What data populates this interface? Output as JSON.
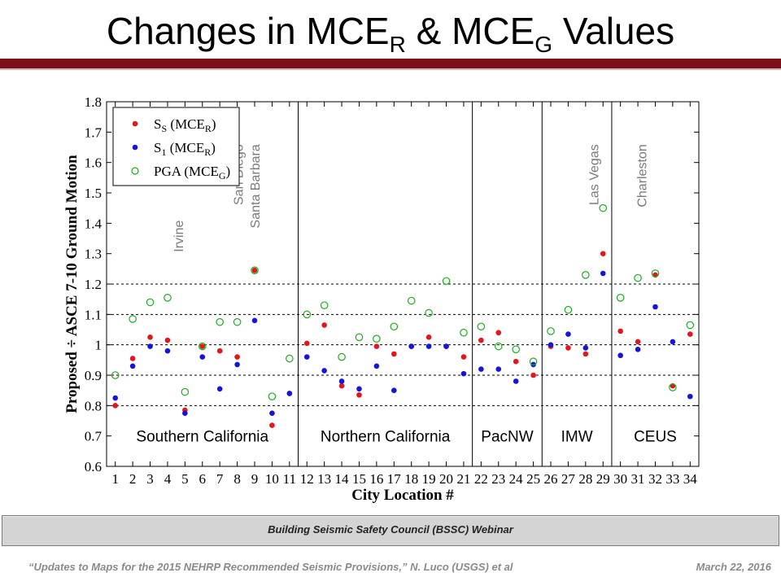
{
  "slide": {
    "title_part1": "Changes in MCE",
    "title_sub1": "R",
    "title_part2": " & MCE",
    "title_sub2": "G",
    "title_part3": " Values",
    "footer_bar_text": "Building Seismic Safety Council (BSSC) Webinar",
    "footer_left": "“Updates to Maps for the 2015 NEHRP Recommended Seismic Provisions,” N. Luco (USGS) et al",
    "footer_right": "March 22, 2016",
    "accent_color": "#7a1018"
  },
  "chart_data": {
    "type": "scatter",
    "xlabel": "City Location #",
    "ylabel": "Proposed ÷ ASCE 7-10 Ground Motion",
    "x_ticks": [
      "1",
      "2",
      "3",
      "4",
      "5",
      "6",
      "7",
      "8",
      "9",
      "10",
      "11",
      "12",
      "13",
      "14",
      "15",
      "16",
      "17",
      "18",
      "19",
      "20",
      "21",
      "22",
      "23",
      "24",
      "25",
      "26",
      "27",
      "28",
      "29",
      "30",
      "31",
      "32",
      "33",
      "34"
    ],
    "y_ticks": [
      "0.6",
      "0.7",
      "0.8",
      "0.9",
      "1",
      "1.1",
      "1.2",
      "1.3",
      "1.4",
      "1.5",
      "1.6",
      "1.7",
      "1.8"
    ],
    "ylim": [
      0.6,
      1.8
    ],
    "xlim": [
      0.5,
      34.5
    ],
    "reference_lines": [
      0.8,
      0.9,
      1.0,
      1.1,
      1.2
    ],
    "region_dividers": [
      11.5,
      21.5,
      25.5,
      29.5
    ],
    "regions": [
      {
        "name": "Southern California",
        "center": 6
      },
      {
        "name": "Northern California",
        "center": 16.5
      },
      {
        "name": "PacNW",
        "center": 23.5
      },
      {
        "name": "IMW",
        "center": 27.5
      },
      {
        "name": "CEUS",
        "center": 32
      }
    ],
    "city_annotations": [
      {
        "text": "Irvine",
        "x": 4.6,
        "y": 1.41
      },
      {
        "text": "San Diego",
        "x": 8.05,
        "y": 1.66
      },
      {
        "text": "Santa Barbara",
        "x": 9.0,
        "y": 1.66
      },
      {
        "text": "Las Vegas",
        "x": 28.45,
        "y": 1.66
      },
      {
        "text": "Charleston",
        "x": 31.2,
        "y": 1.66
      }
    ],
    "legend": {
      "position": "top-left"
    },
    "series": [
      {
        "name": "S_S (MCE_R)",
        "label_main": "S",
        "label_sub": "S",
        "label_tail": " (MCE",
        "label_tail_sub": "R",
        "label_close": ")",
        "color": "#e8141b",
        "marker": "filled-circle",
        "x": [
          1,
          2,
          3,
          4,
          5,
          6,
          7,
          8,
          9,
          10,
          11,
          12,
          13,
          14,
          15,
          16,
          17,
          18,
          19,
          20,
          21,
          22,
          23,
          24,
          25,
          26,
          27,
          28,
          29,
          30,
          31,
          32,
          33,
          34
        ],
        "y": [
          0.8,
          0.955,
          1.025,
          1.015,
          0.785,
          0.995,
          0.98,
          0.96,
          1.245,
          0.735,
          0.84,
          1.005,
          1.065,
          0.865,
          0.835,
          0.995,
          0.97,
          0.995,
          1.025,
          0.995,
          0.96,
          1.015,
          1.04,
          0.945,
          0.9,
          0.995,
          0.99,
          0.97,
          1.3,
          1.045,
          1.01,
          1.23,
          0.865,
          1.035
        ]
      },
      {
        "name": "S_1 (MCE_R)",
        "label_main": "S",
        "label_sub": "1",
        "label_tail": " (MCE",
        "label_tail_sub": "R",
        "label_close": ")",
        "color": "#1414e0",
        "marker": "filled-circle",
        "x": [
          1,
          2,
          3,
          4,
          5,
          6,
          7,
          8,
          9,
          10,
          11,
          12,
          13,
          14,
          15,
          16,
          17,
          18,
          19,
          20,
          21,
          22,
          23,
          24,
          25,
          26,
          27,
          28,
          29,
          30,
          31,
          32,
          33,
          34
        ],
        "y": [
          0.825,
          0.93,
          0.995,
          0.98,
          0.775,
          0.96,
          0.855,
          0.935,
          1.08,
          0.775,
          0.84,
          0.96,
          0.915,
          0.88,
          0.855,
          0.93,
          0.85,
          0.995,
          0.995,
          0.995,
          0.905,
          0.92,
          0.92,
          0.88,
          0.935,
          1.0,
          1.035,
          0.99,
          1.235,
          0.965,
          0.985,
          1.125,
          1.01,
          0.83
        ]
      },
      {
        "name": "PGA (MCE_G)",
        "label_main": "PGA",
        "label_sub": "",
        "label_tail": " (MCE",
        "label_tail_sub": "G",
        "label_close": ")",
        "color": "#17b01a",
        "marker": "open-circle",
        "x": [
          1,
          2,
          3,
          4,
          5,
          6,
          7,
          8,
          9,
          10,
          11,
          12,
          13,
          14,
          15,
          16,
          17,
          18,
          19,
          20,
          21,
          22,
          23,
          24,
          25,
          26,
          27,
          28,
          29,
          30,
          31,
          32,
          33,
          34
        ],
        "y": [
          0.9,
          1.085,
          1.14,
          1.155,
          0.845,
          0.995,
          1.075,
          1.075,
          1.245,
          0.83,
          0.955,
          1.1,
          1.13,
          0.96,
          1.025,
          1.02,
          1.06,
          1.145,
          1.105,
          1.21,
          1.04,
          1.06,
          0.995,
          0.985,
          0.945,
          1.045,
          1.115,
          1.23,
          1.45,
          1.155,
          1.22,
          1.235,
          0.86,
          1.065
        ]
      }
    ]
  }
}
